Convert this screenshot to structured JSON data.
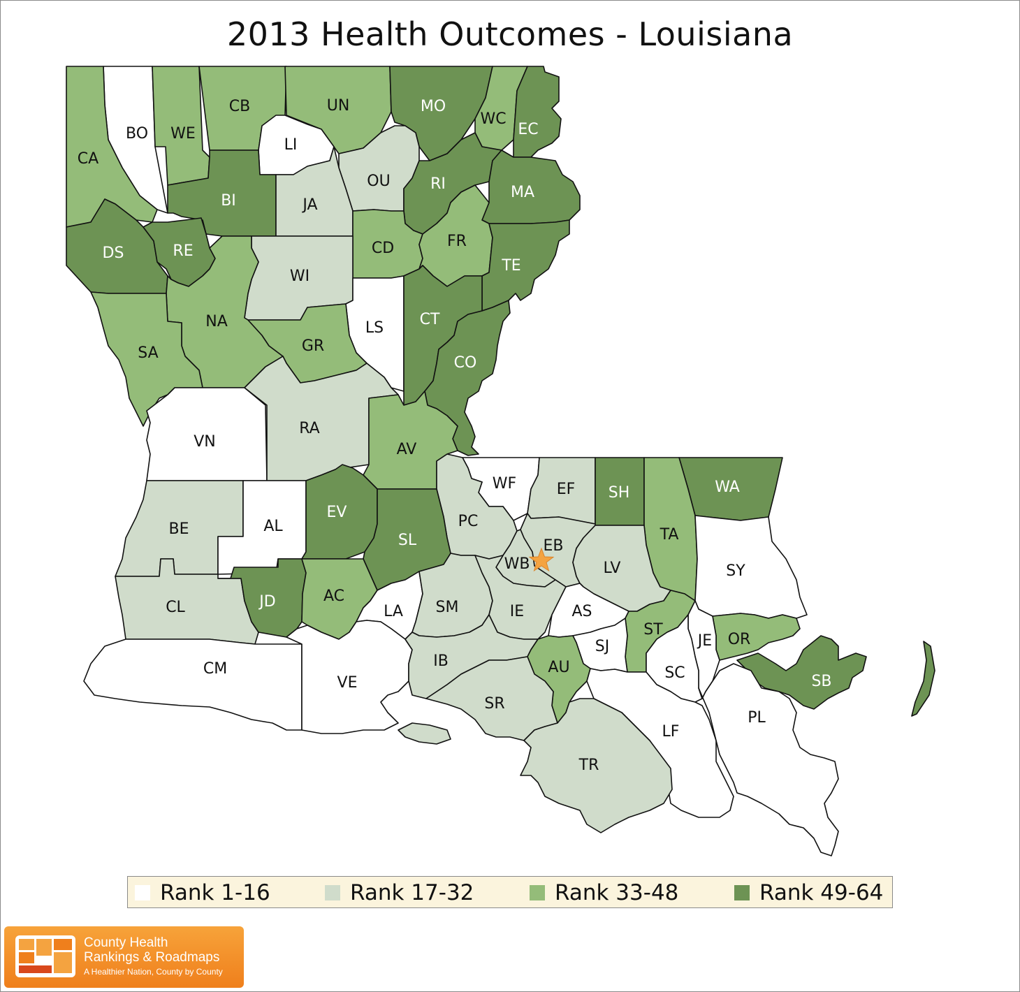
{
  "title": "2013 Health Outcomes - Louisiana",
  "legend": [
    {
      "label": "Rank 1-16",
      "color": "#ffffff",
      "class": "r1"
    },
    {
      "label": "Rank 17-32",
      "color": "#d0dccb",
      "class": "r2"
    },
    {
      "label": "Rank 33-48",
      "color": "#94bc79",
      "class": "r3"
    },
    {
      "label": "Rank 49-64",
      "color": "#6d9354",
      "class": "r4"
    }
  ],
  "parishes": [
    {
      "code": "BO",
      "class": "r1"
    },
    {
      "code": "CA",
      "class": "r3"
    },
    {
      "code": "WE",
      "class": "r3"
    },
    {
      "code": "CB",
      "class": "r3"
    },
    {
      "code": "UN",
      "class": "r3"
    },
    {
      "code": "MO",
      "class": "r4"
    },
    {
      "code": "WC",
      "class": "r3"
    },
    {
      "code": "EC",
      "class": "r4"
    },
    {
      "code": "LI",
      "class": "r1"
    },
    {
      "code": "OU",
      "class": "r2"
    },
    {
      "code": "RI",
      "class": "r4"
    },
    {
      "code": "MA",
      "class": "r4"
    },
    {
      "code": "BI",
      "class": "r4"
    },
    {
      "code": "JA",
      "class": "r2"
    },
    {
      "code": "DS",
      "class": "r4"
    },
    {
      "code": "RE",
      "class": "r4"
    },
    {
      "code": "CD",
      "class": "r3"
    },
    {
      "code": "FR",
      "class": "r3"
    },
    {
      "code": "WI",
      "class": "r2"
    },
    {
      "code": "TE",
      "class": "r4"
    },
    {
      "code": "NA",
      "class": "r3"
    },
    {
      "code": "LS",
      "class": "r1"
    },
    {
      "code": "CT",
      "class": "r4"
    },
    {
      "code": "SA",
      "class": "r3"
    },
    {
      "code": "GR",
      "class": "r3"
    },
    {
      "code": "CO",
      "class": "r4"
    },
    {
      "code": "VN",
      "class": "r1"
    },
    {
      "code": "RA",
      "class": "r2"
    },
    {
      "code": "AV",
      "class": "r3"
    },
    {
      "code": "WF",
      "class": "r1"
    },
    {
      "code": "EF",
      "class": "r2"
    },
    {
      "code": "SH",
      "class": "r4"
    },
    {
      "code": "WA",
      "class": "r4"
    },
    {
      "code": "BE",
      "class": "r2"
    },
    {
      "code": "AL",
      "class": "r1"
    },
    {
      "code": "EV",
      "class": "r4"
    },
    {
      "code": "PC",
      "class": "r2"
    },
    {
      "code": "SL",
      "class": "r4"
    },
    {
      "code": "EB",
      "class": "r2"
    },
    {
      "code": "TA",
      "class": "r3"
    },
    {
      "code": "WB",
      "class": "r2"
    },
    {
      "code": "LV",
      "class": "r2"
    },
    {
      "code": "SY",
      "class": "r1"
    },
    {
      "code": "CL",
      "class": "r2"
    },
    {
      "code": "JD",
      "class": "r4"
    },
    {
      "code": "AC",
      "class": "r3"
    },
    {
      "code": "LA",
      "class": "r1"
    },
    {
      "code": "SM",
      "class": "r2"
    },
    {
      "code": "IE",
      "class": "r2"
    },
    {
      "code": "AS",
      "class": "r1"
    },
    {
      "code": "ST",
      "class": "r3"
    },
    {
      "code": "OR",
      "class": "r3"
    },
    {
      "code": "SJ",
      "class": "r1"
    },
    {
      "code": "JE",
      "class": "r1"
    },
    {
      "code": "CM",
      "class": "r1"
    },
    {
      "code": "VE",
      "class": "r1"
    },
    {
      "code": "IB",
      "class": "r2"
    },
    {
      "code": "AU",
      "class": "r3"
    },
    {
      "code": "SC",
      "class": "r1"
    },
    {
      "code": "SB",
      "class": "r4"
    },
    {
      "code": "SR",
      "class": "r2"
    },
    {
      "code": "LF",
      "class": "r1"
    },
    {
      "code": "PL",
      "class": "r1"
    },
    {
      "code": "TR",
      "class": "r2"
    }
  ],
  "capital_marker": "star-icon",
  "logo": {
    "line1": "County Health",
    "line2": "Rankings & Roadmaps",
    "tagline": "A Healthier Nation, County by County"
  }
}
